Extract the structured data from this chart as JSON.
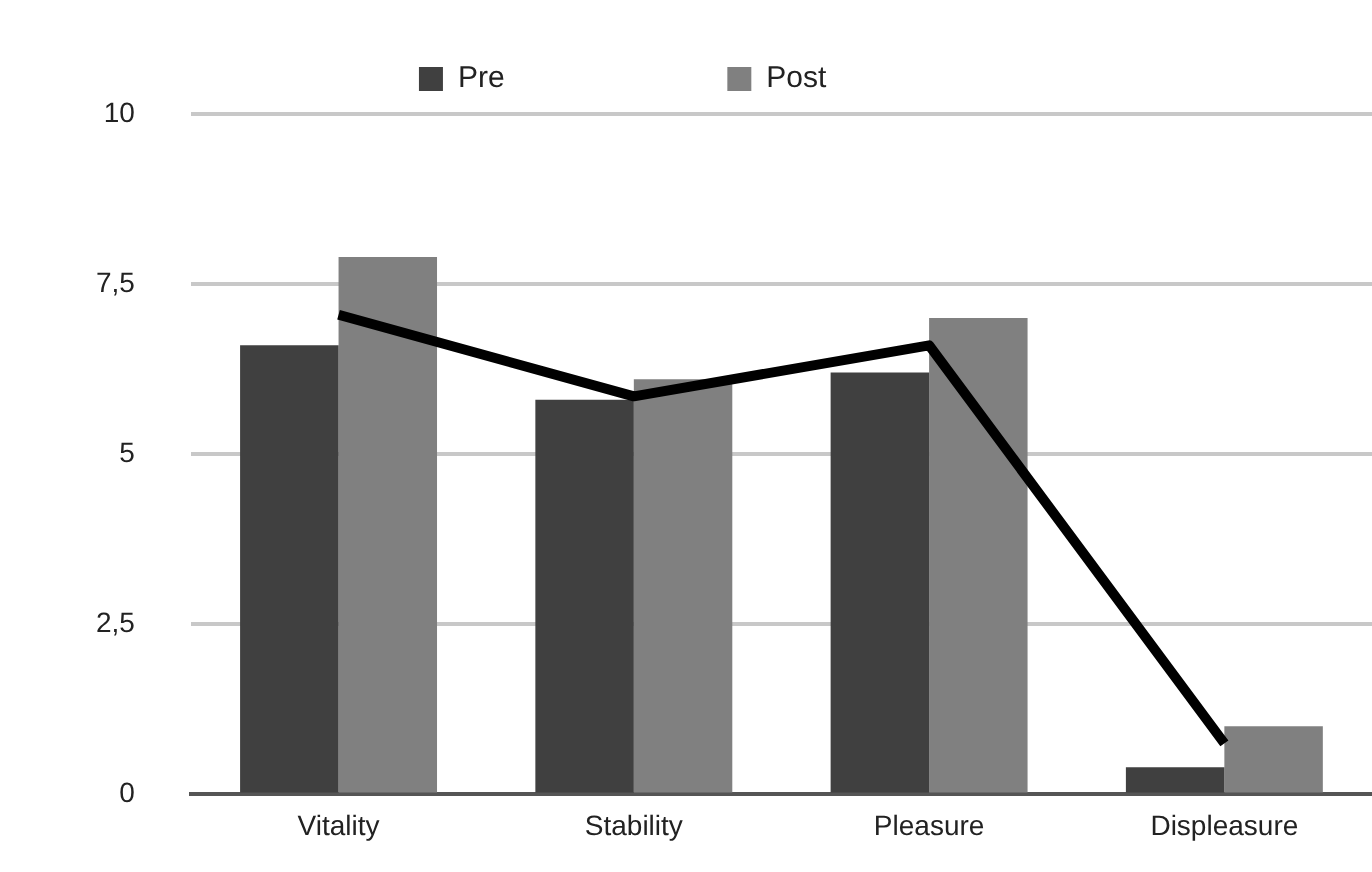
{
  "chart_data": {
    "type": "bar",
    "categories": [
      "Vitality",
      "Stability",
      "Pleasure",
      "Displeasure"
    ],
    "series": [
      {
        "name": "Pre",
        "color": "#404040",
        "values": [
          6.6,
          5.8,
          6.2,
          0.4
        ]
      },
      {
        "name": "Post",
        "color": "#808080",
        "values": [
          7.9,
          6.1,
          7.0,
          1.0
        ]
      },
      {
        "type": "line",
        "color": "#000000",
        "values": [
          7.05,
          5.85,
          6.6,
          0.75
        ]
      }
    ],
    "ylim": [
      0,
      10
    ],
    "yticks": [
      0,
      {
        "value": 2.5,
        "label": "2,5"
      },
      5,
      {
        "value": 7.5,
        "label": "7,5"
      },
      10
    ],
    "grid": "y",
    "legend": "top",
    "marker": "none"
  }
}
